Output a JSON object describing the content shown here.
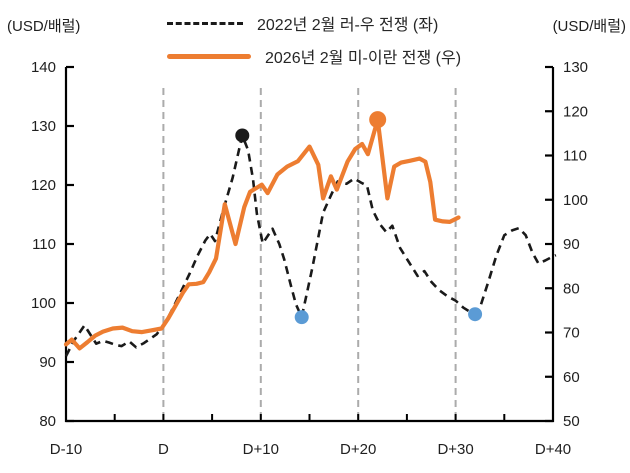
{
  "chart": {
    "left_axis_unit": "(USD/배럴)",
    "right_axis_unit": "(USD/배럴)",
    "legend": [
      {
        "label": "2022년 2월 러-우 전쟁 (좌)",
        "style": "dashed",
        "color": "#1a1a1a"
      },
      {
        "label": "2026년 2월 미-이란 전쟁 (우)",
        "style": "solid",
        "color": "#ED7D31"
      }
    ]
  },
  "chart_data": {
    "type": "line",
    "title": "",
    "x_axis": {
      "range": [
        -10,
        40
      ],
      "tick_days": [
        -10,
        0,
        10,
        20,
        30,
        40
      ],
      "tick_labels": [
        "D-10",
        "D",
        "D+10",
        "D+20",
        "D+30",
        "D+40"
      ],
      "minor_tick_step": 5,
      "gridline_days": [
        0,
        10,
        20,
        30
      ]
    },
    "left_axis": {
      "range": [
        80,
        140
      ],
      "ticks": [
        140,
        130,
        120,
        110,
        100,
        90,
        80
      ]
    },
    "right_axis": {
      "range": [
        50,
        130
      ],
      "ticks": [
        130,
        120,
        110,
        100,
        90,
        80,
        70,
        60,
        50
      ]
    },
    "colors": {
      "gridline": "#ababab",
      "axis": "#000000",
      "black_series": "#1a1a1a",
      "orange_series": "#ED7D31",
      "blue_marker": "#5B9BD5"
    },
    "series": [
      {
        "key": "russia-ukraine-2022",
        "name": "2022년 2월 러-우 전쟁 (좌)",
        "axis": "left",
        "line": "dashed",
        "color": "#1a1a1a",
        "points": [
          [
            -10,
            91.0
          ],
          [
            -9.2,
            93.6
          ],
          [
            -8.1,
            96.2
          ],
          [
            -6.9,
            93.1
          ],
          [
            -6.2,
            93.6
          ],
          [
            -5.6,
            93.3
          ],
          [
            -4.9,
            92.9
          ],
          [
            -4.3,
            92.7
          ],
          [
            -3.5,
            93.5
          ],
          [
            -2.8,
            92.5
          ],
          [
            -2.0,
            93.2
          ],
          [
            -1.4,
            93.9
          ],
          [
            -0.7,
            94.7
          ],
          [
            0.2,
            96.6
          ],
          [
            1.0,
            99.2
          ],
          [
            1.8,
            101.9
          ],
          [
            2.7,
            105.0
          ],
          [
            3.5,
            108.0
          ],
          [
            4.3,
            110.6
          ],
          [
            4.8,
            111.7
          ],
          [
            5.3,
            110.5
          ],
          [
            6.1,
            115.5
          ],
          [
            7.1,
            121.2
          ],
          [
            8.1,
            128.4
          ],
          [
            8.7,
            125.9
          ],
          [
            9.2,
            121.0
          ],
          [
            9.6,
            115.1
          ],
          [
            10.2,
            110.1
          ],
          [
            11.2,
            112.6
          ],
          [
            11.9,
            110.0
          ],
          [
            12.4,
            107.4
          ],
          [
            13.1,
            102.9
          ],
          [
            13.6,
            99.8
          ],
          [
            14.2,
            97.6
          ],
          [
            15.3,
            106.0
          ],
          [
            16.4,
            115.3
          ],
          [
            17.3,
            118.6
          ],
          [
            17.9,
            120.6
          ],
          [
            18.8,
            120.2
          ],
          [
            19.6,
            121.1
          ],
          [
            20.3,
            120.4
          ],
          [
            20.9,
            119.9
          ],
          [
            21.5,
            115.7
          ],
          [
            22.2,
            113.4
          ],
          [
            22.9,
            112.0
          ],
          [
            23.5,
            113.1
          ],
          [
            24.3,
            109.3
          ],
          [
            25.1,
            107.2
          ],
          [
            26.1,
            104.6
          ],
          [
            26.8,
            105.4
          ],
          [
            27.5,
            103.6
          ],
          [
            28.3,
            102.2
          ],
          [
            29.2,
            101.1
          ],
          [
            30.0,
            100.4
          ],
          [
            30.8,
            99.2
          ],
          [
            31.4,
            98.6
          ],
          [
            32.0,
            98.1
          ],
          [
            32.6,
            99.7
          ],
          [
            33.4,
            103.8
          ],
          [
            34.2,
            108.1
          ],
          [
            35.0,
            111.5
          ],
          [
            35.8,
            112.3
          ],
          [
            36.5,
            112.7
          ],
          [
            37.2,
            111.5
          ],
          [
            37.9,
            108.5
          ],
          [
            38.5,
            106.7
          ],
          [
            39.2,
            107.2
          ],
          [
            40.0,
            107.9
          ],
          [
            40.3,
            108.1
          ]
        ]
      },
      {
        "key": "us-iran-2026",
        "name": "2026년 2월 미-이란 전쟁 (우)",
        "axis": "right",
        "line": "solid",
        "color": "#ED7D31",
        "points": [
          [
            -10,
            67.3
          ],
          [
            -9.4,
            68.4
          ],
          [
            -8.6,
            66.4
          ],
          [
            -7.8,
            67.8
          ],
          [
            -7.0,
            69.3
          ],
          [
            -6.2,
            70.2
          ],
          [
            -5.2,
            70.9
          ],
          [
            -4.2,
            71.1
          ],
          [
            -3.2,
            70.3
          ],
          [
            -2.2,
            70.1
          ],
          [
            -1.2,
            70.5
          ],
          [
            -0.2,
            70.9
          ],
          [
            0.5,
            73.2
          ],
          [
            1.2,
            75.9
          ],
          [
            2.0,
            79.0
          ],
          [
            2.6,
            80.9
          ],
          [
            3.4,
            81.0
          ],
          [
            4.1,
            81.4
          ],
          [
            4.7,
            83.6
          ],
          [
            5.4,
            86.7
          ],
          [
            6.3,
            99.0
          ],
          [
            7.4,
            90.0
          ],
          [
            8.3,
            98.3
          ],
          [
            8.9,
            101.8
          ],
          [
            10.1,
            103.4
          ],
          [
            10.7,
            101.5
          ],
          [
            11.7,
            105.7
          ],
          [
            12.7,
            107.5
          ],
          [
            13.8,
            108.7
          ],
          [
            15.0,
            112.0
          ],
          [
            15.9,
            107.9
          ],
          [
            16.4,
            100.3
          ],
          [
            17.2,
            105.3
          ],
          [
            17.8,
            102.3
          ],
          [
            18.9,
            108.6
          ],
          [
            19.7,
            111.5
          ],
          [
            20.4,
            112.6
          ],
          [
            21.0,
            110.3
          ],
          [
            22.0,
            118.1
          ],
          [
            23.0,
            100.3
          ],
          [
            23.7,
            107.5
          ],
          [
            24.4,
            108.4
          ],
          [
            25.3,
            108.8
          ],
          [
            26.3,
            109.3
          ],
          [
            26.9,
            108.6
          ],
          [
            27.4,
            104.0
          ],
          [
            27.9,
            95.5
          ],
          [
            28.7,
            95.1
          ],
          [
            29.4,
            95.0
          ],
          [
            30.3,
            96.0
          ]
        ]
      }
    ],
    "markers": [
      {
        "key": "russia-ukraine-peak",
        "day": 8.1,
        "value": 128.4,
        "axis": "left",
        "color": "#1a1a1a",
        "r": 7
      },
      {
        "key": "russia-ukraine-trough-1",
        "day": 14.2,
        "value": 97.6,
        "axis": "left",
        "color": "#5B9BD5",
        "r": 7
      },
      {
        "key": "russia-ukraine-trough-2",
        "day": 32.0,
        "value": 98.1,
        "axis": "left",
        "color": "#5B9BD5",
        "r": 7
      },
      {
        "key": "us-iran-peak",
        "day": 22.0,
        "value": 118.1,
        "axis": "right",
        "color": "#ED7D31",
        "r": 8.5
      }
    ]
  }
}
